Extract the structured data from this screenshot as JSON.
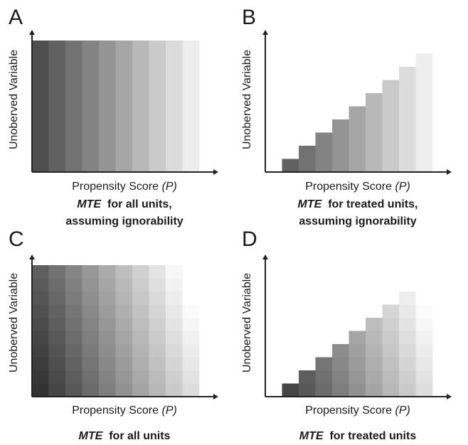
{
  "panels": [
    {
      "id": "A",
      "letter": "A",
      "y_label": "Unoberved Variable",
      "x_label_text": "Propensity Score",
      "x_label_var": "(P)",
      "caption_term": "MTE",
      "caption_rest": "for all units,",
      "caption_line2": "assuming ignorability",
      "mode": "columns",
      "shape": "full"
    },
    {
      "id": "B",
      "letter": "B",
      "y_label": "Unoberved Variable",
      "x_label_text": "Propensity Score",
      "x_label_var": "(P)",
      "caption_term": "MTE",
      "caption_rest": "for treated units,",
      "caption_line2": "assuming ignorability",
      "mode": "columns",
      "shape": "staircase"
    },
    {
      "id": "C",
      "letter": "C",
      "y_label": "Unoberved Variable",
      "x_label_text": "Propensity Score",
      "x_label_var": "(P)",
      "caption_term": "MTE",
      "caption_rest": "for all units",
      "caption_line2": "",
      "mode": "grid",
      "shape": "full"
    },
    {
      "id": "D",
      "letter": "D",
      "y_label": "Unoberved Variable",
      "x_label_text": "Propensity Score",
      "x_label_var": "(P)",
      "caption_term": "MTE",
      "caption_rest": "for treated units",
      "caption_line2": "",
      "mode": "grid",
      "shape": "staircase"
    }
  ],
  "colors": {
    "axis": "#222222",
    "column_shades": [
      "#4f4f4f",
      "#616161",
      "#727272",
      "#838383",
      "#949494",
      "#a6a6a6",
      "#b8b8b8",
      "#cacaca",
      "#dcdcdc",
      "#ededed"
    ]
  }
}
